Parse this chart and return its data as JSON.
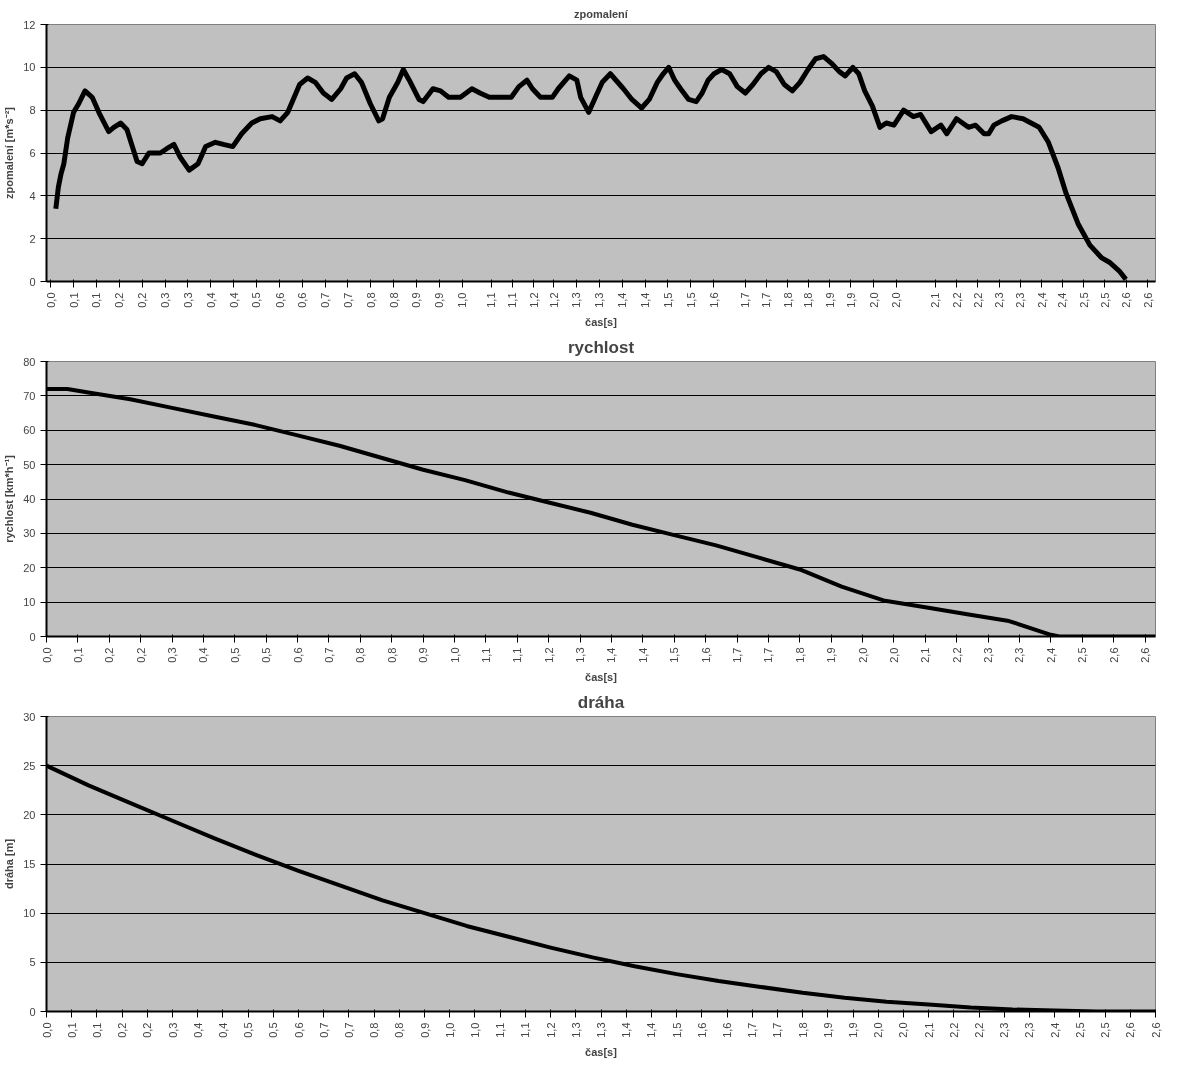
{
  "chart_data": [
    {
      "type": "line",
      "title": "zpomalení",
      "xlabel": "čas[s]",
      "ylabel": "zpomalení [m*s⁻²]",
      "grid": "y",
      "marker": "none",
      "line_style": "solid",
      "xlim": [
        0,
        2.62
      ],
      "ylim": [
        0,
        12
      ],
      "yticks": [
        0,
        2,
        4,
        6,
        8,
        10,
        12
      ],
      "xticks": [
        {
          "value": 0.01,
          "label": "0,0"
        },
        {
          "value": 0.064,
          "label": "0,1"
        },
        {
          "value": 0.118,
          "label": "0,1"
        },
        {
          "value": 0.172,
          "label": "0,2"
        },
        {
          "value": 0.226,
          "label": "0,2"
        },
        {
          "value": 0.28,
          "label": "0,3"
        },
        {
          "value": 0.334,
          "label": "0,3"
        },
        {
          "value": 0.388,
          "label": "0,4"
        },
        {
          "value": 0.442,
          "label": "0,4"
        },
        {
          "value": 0.496,
          "label": "0,5"
        },
        {
          "value": 0.551,
          "label": "0,6"
        },
        {
          "value": 0.604,
          "label": "0,6"
        },
        {
          "value": 0.658,
          "label": "0,7"
        },
        {
          "value": 0.712,
          "label": "0,7"
        },
        {
          "value": 0.766,
          "label": "0,8"
        },
        {
          "value": 0.82,
          "label": "0,8"
        },
        {
          "value": 0.874,
          "label": "0,9"
        },
        {
          "value": 0.928,
          "label": "0,9"
        },
        {
          "value": 0.982,
          "label": "1,0"
        },
        {
          "value": 1.051,
          "label": "1,1"
        },
        {
          "value": 1.1,
          "label": "1,1"
        },
        {
          "value": 1.151,
          "label": "1,2"
        },
        {
          "value": 1.198,
          "label": "1,2"
        },
        {
          "value": 1.252,
          "label": "1,3"
        },
        {
          "value": 1.306,
          "label": "1,3"
        },
        {
          "value": 1.36,
          "label": "1,4"
        },
        {
          "value": 1.414,
          "label": "1,4"
        },
        {
          "value": 1.468,
          "label": "1,5"
        },
        {
          "value": 1.522,
          "label": "1,5"
        },
        {
          "value": 1.576,
          "label": "1,6"
        },
        {
          "value": 1.651,
          "label": "1,7"
        },
        {
          "value": 1.7,
          "label": "1,7"
        },
        {
          "value": 1.751,
          "label": "1,8"
        },
        {
          "value": 1.8,
          "label": "1,8"
        },
        {
          "value": 1.851,
          "label": "1,9"
        },
        {
          "value": 1.9,
          "label": "1,9"
        },
        {
          "value": 1.954,
          "label": "2,0"
        },
        {
          "value": 2.008,
          "label": "2,0"
        },
        {
          "value": 2.1,
          "label": "2,1"
        },
        {
          "value": 2.151,
          "label": "2,2"
        },
        {
          "value": 2.2,
          "label": "2,2"
        },
        {
          "value": 2.251,
          "label": "2,3"
        },
        {
          "value": 2.3,
          "label": "2,3"
        },
        {
          "value": 2.351,
          "label": "2,4"
        },
        {
          "value": 2.4,
          "label": "2,4"
        },
        {
          "value": 2.451,
          "label": "2,5"
        },
        {
          "value": 2.5,
          "label": "2,5"
        },
        {
          "value": 2.551,
          "label": "2,6"
        },
        {
          "value": 2.602,
          "label": "2,6"
        }
      ],
      "series": [
        {
          "color": "#000000",
          "x": [
            0.022,
            0.028,
            0.034,
            0.041,
            0.05,
            0.064,
            0.076,
            0.091,
            0.108,
            0.126,
            0.147,
            0.159,
            0.175,
            0.19,
            0.214,
            0.226,
            0.242,
            0.256,
            0.269,
            0.284,
            0.301,
            0.316,
            0.337,
            0.358,
            0.376,
            0.399,
            0.418,
            0.44,
            0.461,
            0.485,
            0.505,
            0.533,
            0.552,
            0.57,
            0.598,
            0.617,
            0.635,
            0.654,
            0.674,
            0.695,
            0.709,
            0.728,
            0.744,
            0.765,
            0.785,
            0.794,
            0.81,
            0.83,
            0.843,
            0.857,
            0.88,
            0.89,
            0.913,
            0.931,
            0.95,
            0.978,
            1.005,
            1.024,
            1.046,
            1.074,
            1.098,
            1.116,
            1.135,
            1.148,
            1.167,
            1.195,
            1.209,
            1.235,
            1.253,
            1.262,
            1.281,
            1.299,
            1.313,
            1.332,
            1.363,
            1.383,
            1.406,
            1.424,
            1.443,
            1.457,
            1.47,
            1.484,
            1.498,
            1.517,
            1.535,
            1.549,
            1.563,
            1.577,
            1.595,
            1.614,
            1.632,
            1.651,
            1.669,
            1.688,
            1.706,
            1.724,
            1.743,
            1.762,
            1.78,
            1.799,
            1.817,
            1.836,
            1.854,
            1.873,
            1.887,
            1.905,
            1.919,
            1.933,
            1.951,
            1.969,
            1.984,
            2.002,
            2.025,
            2.048,
            2.065,
            2.09,
            2.113,
            2.127,
            2.15,
            2.178,
            2.195,
            2.215,
            2.226,
            2.238,
            2.257,
            2.28,
            2.307,
            2.345,
            2.367,
            2.39,
            2.409,
            2.437,
            2.465,
            2.493,
            2.511,
            2.534,
            2.55
          ],
          "values": [
            3.4,
            4.4,
            5.0,
            5.5,
            6.7,
            7.9,
            8.3,
            8.9,
            8.6,
            7.8,
            7.0,
            7.2,
            7.4,
            7.1,
            5.6,
            5.5,
            6.0,
            6.0,
            6.0,
            6.2,
            6.4,
            5.8,
            5.2,
            5.5,
            6.3,
            6.5,
            6.4,
            6.3,
            6.9,
            7.4,
            7.6,
            7.7,
            7.5,
            7.9,
            9.2,
            9.5,
            9.3,
            8.8,
            8.5,
            9.0,
            9.5,
            9.7,
            9.3,
            8.3,
            7.5,
            7.6,
            8.6,
            9.3,
            9.9,
            9.4,
            8.5,
            8.4,
            9.0,
            8.9,
            8.6,
            8.6,
            9.0,
            8.8,
            8.6,
            8.6,
            8.6,
            9.1,
            9.4,
            9.0,
            8.6,
            8.6,
            9.0,
            9.6,
            9.4,
            8.6,
            7.9,
            8.7,
            9.3,
            9.7,
            9.0,
            8.5,
            8.1,
            8.5,
            9.3,
            9.7,
            10.0,
            9.4,
            9.0,
            8.5,
            8.4,
            8.8,
            9.4,
            9.7,
            9.9,
            9.7,
            9.1,
            8.8,
            9.2,
            9.7,
            10.0,
            9.8,
            9.2,
            8.9,
            9.3,
            9.9,
            10.4,
            10.5,
            10.2,
            9.8,
            9.6,
            10.0,
            9.7,
            8.9,
            8.2,
            7.2,
            7.4,
            7.3,
            8.0,
            7.7,
            7.8,
            7.0,
            7.3,
            6.9,
            7.6,
            7.2,
            7.3,
            6.9,
            6.9,
            7.3,
            7.5,
            7.7,
            7.6,
            7.2,
            6.5,
            5.3,
            4.1,
            2.7,
            1.7,
            1.1,
            0.9,
            0.5,
            0.1
          ]
        }
      ]
    },
    {
      "type": "line",
      "title": "rychlost",
      "xlabel": "čas[s]",
      "ylabel": "rychlost [km*h⁻¹]",
      "grid": "y",
      "marker": "none",
      "line_style": "solid",
      "xlim": [
        0,
        2.65
      ],
      "ylim": [
        0,
        80
      ],
      "yticks": [
        0,
        10,
        20,
        30,
        40,
        50,
        60,
        70,
        80
      ],
      "xticks": [
        {
          "value": 0,
          "label": "0,0"
        },
        {
          "value": 0.075,
          "label": "0,1"
        },
        {
          "value": 0.15,
          "label": "0,2"
        },
        {
          "value": 0.225,
          "label": "0,2"
        },
        {
          "value": 0.3,
          "label": "0,3"
        },
        {
          "value": 0.375,
          "label": "0,4"
        },
        {
          "value": 0.45,
          "label": "0,5"
        },
        {
          "value": 0.525,
          "label": "0,5"
        },
        {
          "value": 0.6,
          "label": "0,6"
        },
        {
          "value": 0.675,
          "label": "0,7"
        },
        {
          "value": 0.75,
          "label": "0,8"
        },
        {
          "value": 0.825,
          "label": "0,8"
        },
        {
          "value": 0.9,
          "label": "0,9"
        },
        {
          "value": 0.975,
          "label": "1,0"
        },
        {
          "value": 1.05,
          "label": "1,1"
        },
        {
          "value": 1.125,
          "label": "1,1"
        },
        {
          "value": 1.2,
          "label": "1,2"
        },
        {
          "value": 1.275,
          "label": "1,3"
        },
        {
          "value": 1.35,
          "label": "1,4"
        },
        {
          "value": 1.425,
          "label": "1,4"
        },
        {
          "value": 1.5,
          "label": "1,5"
        },
        {
          "value": 1.575,
          "label": "1,6"
        },
        {
          "value": 1.65,
          "label": "1,7"
        },
        {
          "value": 1.725,
          "label": "1,7"
        },
        {
          "value": 1.8,
          "label": "1,8"
        },
        {
          "value": 1.875,
          "label": "1,9"
        },
        {
          "value": 1.95,
          "label": "2,0"
        },
        {
          "value": 2.025,
          "label": "2,0"
        },
        {
          "value": 2.1,
          "label": "2,1"
        },
        {
          "value": 2.175,
          "label": "2,2"
        },
        {
          "value": 2.25,
          "label": "2,3"
        },
        {
          "value": 2.325,
          "label": "2,3"
        },
        {
          "value": 2.4,
          "label": "2,4"
        },
        {
          "value": 2.475,
          "label": "2,5"
        },
        {
          "value": 2.55,
          "label": "2,6"
        },
        {
          "value": 2.625,
          "label": "2,6"
        }
      ],
      "series": [
        {
          "color": "#000000",
          "x": [
            0,
            0.05,
            0.1,
            0.2,
            0.3,
            0.4,
            0.5,
            0.6,
            0.7,
            0.8,
            0.9,
            1.0,
            1.1,
            1.2,
            1.3,
            1.4,
            1.5,
            1.6,
            1.7,
            1.8,
            1.9,
            2.0,
            2.1,
            2.2,
            2.3,
            2.4,
            2.42,
            2.65
          ],
          "values": [
            72,
            72,
            71,
            69,
            66.5,
            64,
            61.5,
            58.5,
            55.5,
            52,
            48.5,
            45.5,
            42,
            39,
            36,
            32.5,
            29.5,
            26.5,
            23,
            19.5,
            14.5,
            10.5,
            8.5,
            6.5,
            4.5,
            0.5,
            0,
            0
          ]
        }
      ]
    },
    {
      "type": "line",
      "title": "dráha",
      "xlabel": "čas[s]",
      "ylabel": "dráha [m]",
      "grid": "y",
      "marker": "none",
      "line_style": "solid",
      "xlim": [
        0,
        2.64
      ],
      "ylim": [
        0,
        30
      ],
      "yticks": [
        0,
        5,
        10,
        15,
        20,
        25,
        30
      ],
      "xticks": [
        {
          "value": 0,
          "label": "0,0"
        },
        {
          "value": 0.06,
          "label": "0,1"
        },
        {
          "value": 0.12,
          "label": "0,1"
        },
        {
          "value": 0.18,
          "label": "0,2"
        },
        {
          "value": 0.24,
          "label": "0,2"
        },
        {
          "value": 0.3,
          "label": "0,3"
        },
        {
          "value": 0.36,
          "label": "0,4"
        },
        {
          "value": 0.42,
          "label": "0,4"
        },
        {
          "value": 0.48,
          "label": "0,5"
        },
        {
          "value": 0.54,
          "label": "0,5"
        },
        {
          "value": 0.6,
          "label": "0,6"
        },
        {
          "value": 0.66,
          "label": "0,7"
        },
        {
          "value": 0.72,
          "label": "0,7"
        },
        {
          "value": 0.78,
          "label": "0,8"
        },
        {
          "value": 0.84,
          "label": "0,8"
        },
        {
          "value": 0.9,
          "label": "0,9"
        },
        {
          "value": 0.96,
          "label": "1,0"
        },
        {
          "value": 1.02,
          "label": "1,0"
        },
        {
          "value": 1.08,
          "label": "1,1"
        },
        {
          "value": 1.14,
          "label": "1,1"
        },
        {
          "value": 1.2,
          "label": "1,2"
        },
        {
          "value": 1.26,
          "label": "1,3"
        },
        {
          "value": 1.32,
          "label": "1,3"
        },
        {
          "value": 1.38,
          "label": "1,4"
        },
        {
          "value": 1.44,
          "label": "1,4"
        },
        {
          "value": 1.5,
          "label": "1,5"
        },
        {
          "value": 1.56,
          "label": "1,6"
        },
        {
          "value": 1.62,
          "label": "1,6"
        },
        {
          "value": 1.68,
          "label": "1,7"
        },
        {
          "value": 1.74,
          "label": "1,7"
        },
        {
          "value": 1.8,
          "label": "1,8"
        },
        {
          "value": 1.86,
          "label": "1,9"
        },
        {
          "value": 1.92,
          "label": "1,9"
        },
        {
          "value": 1.98,
          "label": "2,0"
        },
        {
          "value": 2.04,
          "label": "2,0"
        },
        {
          "value": 2.1,
          "label": "2,1"
        },
        {
          "value": 2.16,
          "label": "2,2"
        },
        {
          "value": 2.22,
          "label": "2,2"
        },
        {
          "value": 2.28,
          "label": "2,3"
        },
        {
          "value": 2.34,
          "label": "2,3"
        },
        {
          "value": 2.4,
          "label": "2,4"
        },
        {
          "value": 2.46,
          "label": "2,5"
        },
        {
          "value": 2.52,
          "label": "2,5"
        },
        {
          "value": 2.58,
          "label": "2,6"
        },
        {
          "value": 2.64,
          "label": "2,6"
        }
      ],
      "series": [
        {
          "color": "#000000",
          "x": [
            0,
            0.1,
            0.2,
            0.3,
            0.4,
            0.5,
            0.6,
            0.7,
            0.8,
            0.9,
            1.0,
            1.1,
            1.2,
            1.3,
            1.4,
            1.5,
            1.6,
            1.7,
            1.8,
            1.9,
            2.0,
            2.1,
            2.2,
            2.3,
            2.4,
            2.5,
            2.64
          ],
          "values": [
            25,
            23,
            21.2,
            19.4,
            17.6,
            15.9,
            14.3,
            12.8,
            11.3,
            10.0,
            8.7,
            7.6,
            6.5,
            5.5,
            4.6,
            3.8,
            3.1,
            2.5,
            1.9,
            1.4,
            1.0,
            0.7,
            0.4,
            0.2,
            0.1,
            0,
            0
          ]
        }
      ]
    }
  ]
}
